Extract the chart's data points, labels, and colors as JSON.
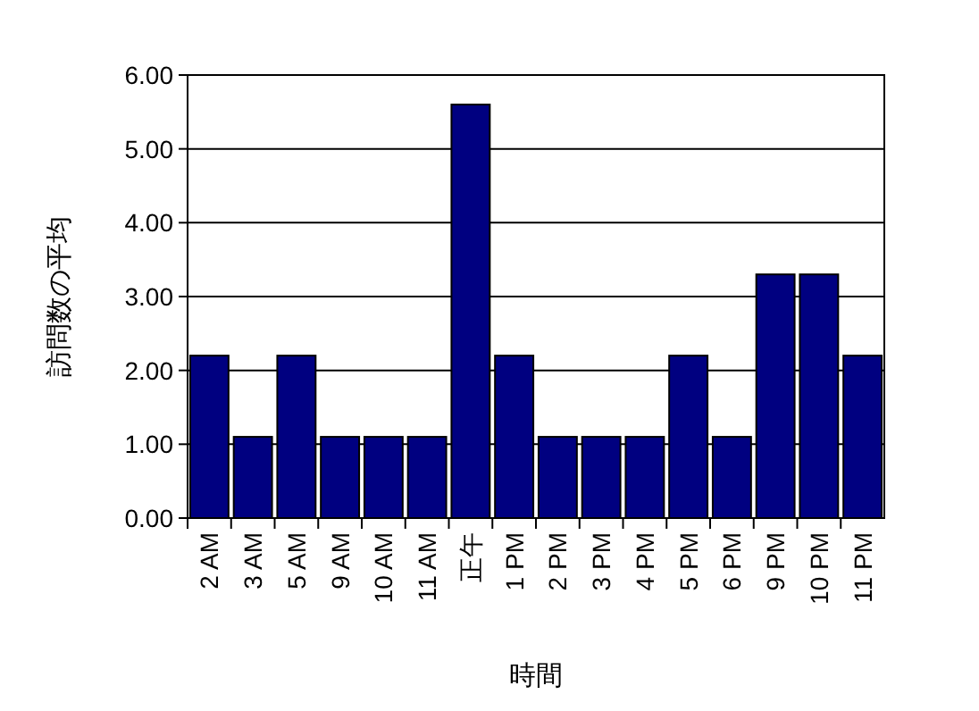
{
  "chart_data": {
    "type": "bar",
    "xlabel": "時間",
    "ylabel": "訪問数の平均",
    "categories": [
      "2 AM",
      "3 AM",
      "5 AM",
      "9 AM",
      "10 AM",
      "11 AM",
      "正午",
      "1 PM",
      "2 PM",
      "3 PM",
      "4 PM",
      "5 PM",
      "6 PM",
      "9 PM",
      "10 PM",
      "11 PM"
    ],
    "values": [
      2.2,
      1.1,
      2.2,
      1.1,
      1.1,
      1.1,
      5.6,
      2.2,
      1.1,
      1.1,
      1.1,
      2.2,
      1.1,
      3.3,
      3.3,
      2.2
    ],
    "color": "#000080",
    "ylim": [
      0,
      6
    ],
    "yticks": [
      {
        "value": 0,
        "label": "0.00"
      },
      {
        "value": 1,
        "label": "1.00"
      },
      {
        "value": 2,
        "label": "2.00"
      },
      {
        "value": 3,
        "label": "3.00"
      },
      {
        "value": 4,
        "label": "4.00"
      },
      {
        "value": 5,
        "label": "5.00"
      },
      {
        "value": 6,
        "label": "6.00"
      }
    ],
    "grid": "y"
  }
}
